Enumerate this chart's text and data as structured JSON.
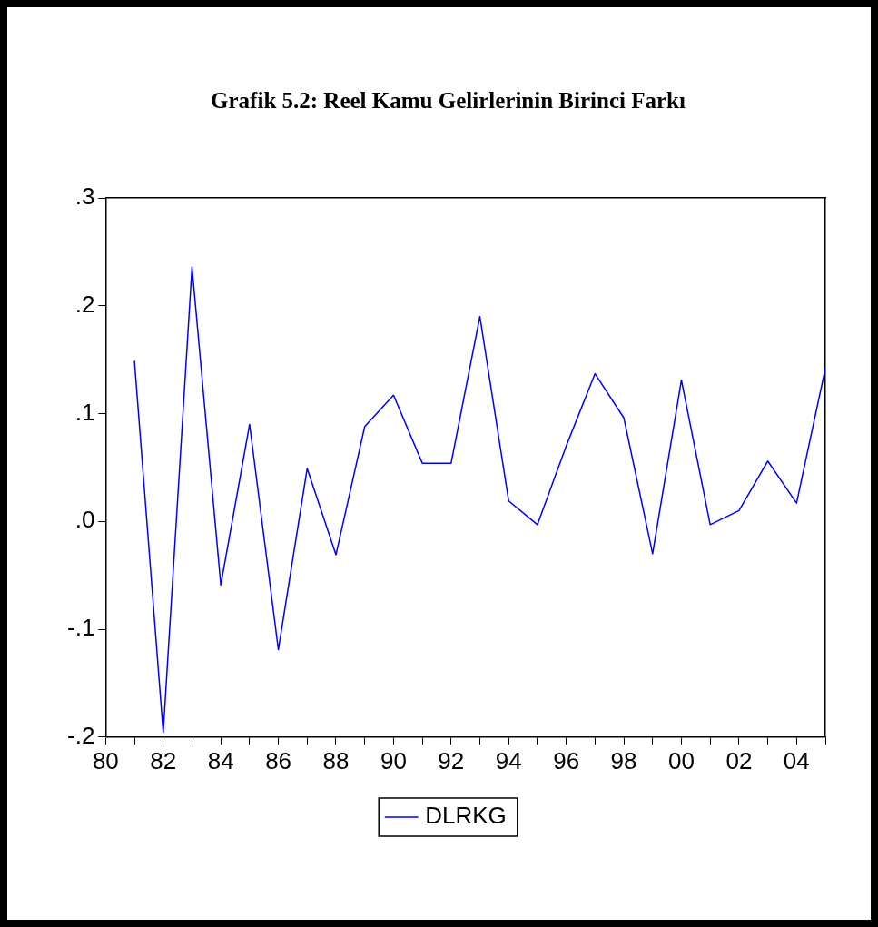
{
  "chart_data": {
    "type": "line",
    "title": "Grafik 5.2: Reel Kamu Gelirlerinin Birinci Farkı",
    "x": [
      1981,
      1982,
      1983,
      1984,
      1985,
      1986,
      1987,
      1988,
      1989,
      1990,
      1991,
      1992,
      1993,
      1994,
      1995,
      1996,
      1997,
      1998,
      1999,
      2000,
      2001,
      2002,
      2003,
      2004,
      2005
    ],
    "series": [
      {
        "name": "DLRKG",
        "color": "#0000ff",
        "values": [
          0.149,
          -0.196,
          0.236,
          -0.059,
          0.09,
          -0.119,
          0.049,
          -0.031,
          0.088,
          0.117,
          0.054,
          0.054,
          0.19,
          0.019,
          -0.003,
          0.07,
          0.137,
          0.096,
          -0.03,
          0.131,
          -0.003,
          0.01,
          0.056,
          0.017,
          0.142
        ]
      }
    ],
    "xlim": [
      1980,
      2005
    ],
    "xticks": [
      {
        "value": 1980,
        "label": "80"
      },
      {
        "value": 1981,
        "label": null
      },
      {
        "value": 1982,
        "label": "82"
      },
      {
        "value": 1983,
        "label": null
      },
      {
        "value": 1984,
        "label": "84"
      },
      {
        "value": 1985,
        "label": null
      },
      {
        "value": 1986,
        "label": "86"
      },
      {
        "value": 1987,
        "label": null
      },
      {
        "value": 1988,
        "label": "88"
      },
      {
        "value": 1989,
        "label": null
      },
      {
        "value": 1990,
        "label": "90"
      },
      {
        "value": 1991,
        "label": null
      },
      {
        "value": 1992,
        "label": "92"
      },
      {
        "value": 1993,
        "label": null
      },
      {
        "value": 1994,
        "label": "94"
      },
      {
        "value": 1995,
        "label": null
      },
      {
        "value": 1996,
        "label": "96"
      },
      {
        "value": 1997,
        "label": null
      },
      {
        "value": 1998,
        "label": "98"
      },
      {
        "value": 1999,
        "label": null
      },
      {
        "value": 2000,
        "label": "00"
      },
      {
        "value": 2001,
        "label": null
      },
      {
        "value": 2002,
        "label": "02"
      },
      {
        "value": 2003,
        "label": null
      },
      {
        "value": 2004,
        "label": "04"
      },
      {
        "value": 2005,
        "label": null
      }
    ],
    "ylim": [
      -0.2,
      0.3
    ],
    "yticks": [
      {
        "value": -0.2,
        "label": "-.2"
      },
      {
        "value": -0.1,
        "label": "-.1"
      },
      {
        "value": 0,
        "label": ".0"
      },
      {
        "value": 0.1,
        "label": ".1"
      },
      {
        "value": 0.2,
        "label": ".2"
      },
      {
        "value": 0.3,
        "label": ".3"
      }
    ],
    "grid": false,
    "legend": "bottom",
    "marker": "none",
    "line_style": "solid"
  }
}
